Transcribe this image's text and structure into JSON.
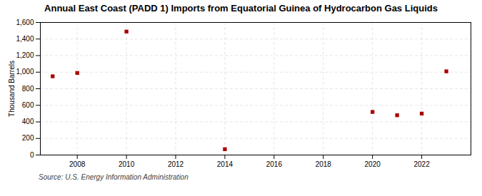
{
  "chart_data": {
    "type": "scatter",
    "title": "Annual East Coast (PADD 1) Imports from Equatorial Guinea of Hydrocarbon Gas Liquids",
    "ylabel": "Thousand Barrels",
    "source": "Source: U.S. Energy Information Administration",
    "x": [
      2007,
      2008,
      2010,
      2014,
      2020,
      2021,
      2022,
      2023
    ],
    "values": [
      950,
      990,
      1490,
      70,
      520,
      480,
      500,
      1010
    ],
    "color": "#aa0000",
    "marker": "square",
    "xlim": [
      2006.5,
      2024
    ],
    "ylim": [
      0,
      1600
    ],
    "xticks": [
      2008,
      2010,
      2012,
      2014,
      2016,
      2018,
      2020,
      2022
    ],
    "yticks": [
      0,
      200,
      400,
      600,
      800,
      {
        "value": 1000,
        "label": "1,000"
      },
      {
        "value": 1200,
        "label": "1,200"
      },
      {
        "value": 1400,
        "label": "1,400"
      },
      {
        "value": 1600,
        "label": "1,600"
      }
    ],
    "grid": true
  }
}
